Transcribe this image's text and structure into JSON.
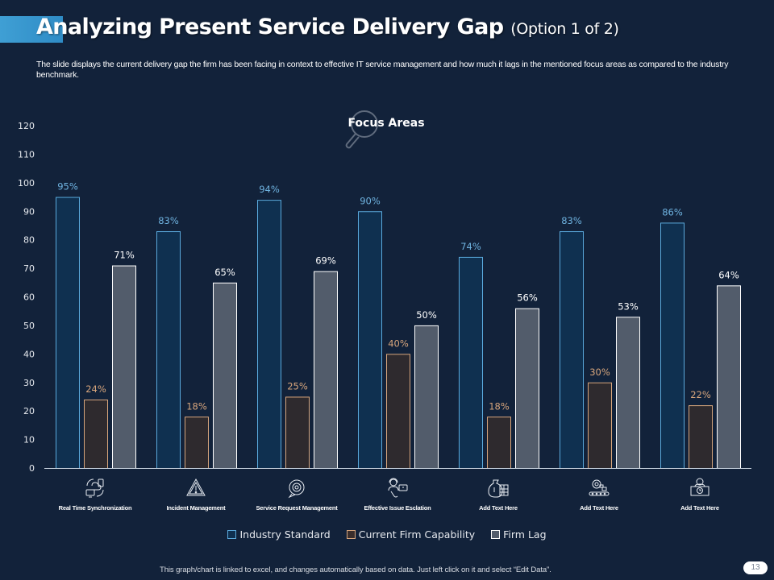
{
  "header": {
    "title": "Analyzing Present Service Delivery Gap",
    "title_suffix": "(Option 1 of 2)",
    "description": "The slide displays the current delivery gap the firm has been facing in context to effective IT service management and how much it lags in the mentioned focus areas as compared to the industry benchmark."
  },
  "footer": {
    "note": "This graph/chart is linked to excel, and changes automatically based on data. Just left click on it and select “Edit Data”.",
    "page_number": "13"
  },
  "colors": {
    "background": "#12223a",
    "accent": "#3f9fd4",
    "industry_fill": "#0f3050",
    "industry_stroke": "#5aa9dc",
    "industry_label": "#6fb3e0",
    "current_fill": "#2e2a2e",
    "current_stroke": "#d7a57c",
    "current_label": "#d7a57c",
    "lag_fill": "#525c6b",
    "lag_stroke": "#ffffff",
    "lag_label": "#ffffff"
  },
  "chart_data": {
    "type": "bar",
    "title": "Focus Areas",
    "title_icon": "magnifier-icon",
    "xlabel": "",
    "ylabel": "",
    "ylim": [
      0,
      120
    ],
    "yticks": [
      0,
      10,
      20,
      30,
      40,
      50,
      60,
      70,
      80,
      90,
      100,
      110,
      120
    ],
    "grid": false,
    "legend_position": "bottom",
    "categories": [
      "Real Time Synchronization",
      "Incident Management",
      "Service Request Management",
      "Effective Issue Esclation",
      "Add Text Here",
      "Add Text Here",
      "Add Text Here"
    ],
    "category_icons": [
      "sync-devices-icon",
      "warning-triangle-icon",
      "service-request-icon",
      "support-agent-icon",
      "money-bag-calculator-icon",
      "gear-conveyor-icon",
      "desk-clock-person-icon"
    ],
    "series": [
      {
        "name": "Industry Standard",
        "values": [
          95,
          83,
          94,
          90,
          74,
          83,
          86
        ],
        "labels": [
          "95%",
          "83%",
          "94%",
          "90%",
          "74%",
          "83%",
          "86%"
        ]
      },
      {
        "name": "Current Firm Capability",
        "values": [
          24,
          18,
          25,
          40,
          18,
          30,
          22
        ],
        "labels": [
          "24%",
          "18%",
          "25%",
          "40%",
          "18%",
          "30%",
          "22%"
        ]
      },
      {
        "name": "Firm Lag",
        "values": [
          71,
          65,
          69,
          50,
          56,
          53,
          64
        ],
        "labels": [
          "71%",
          "65%",
          "69%",
          "50%",
          "56%",
          "53%",
          "64%"
        ]
      }
    ]
  }
}
